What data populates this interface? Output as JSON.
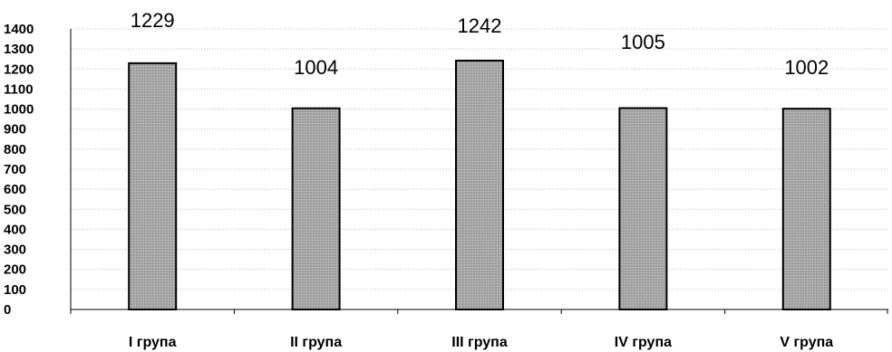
{
  "chart_data": {
    "type": "bar",
    "categories": [
      "I група",
      "II група",
      "III група",
      "IV група",
      "V група"
    ],
    "values": [
      1229,
      1004,
      1242,
      1005,
      1002
    ],
    "data_labels": [
      "1229",
      "1004",
      "1242",
      "1005",
      "1002"
    ],
    "title": "",
    "xlabel": "",
    "ylabel": "",
    "ylim": [
      0,
      1400
    ],
    "yticks": [
      0,
      100,
      200,
      300,
      400,
      500,
      600,
      700,
      800,
      900,
      1000,
      1100,
      1200,
      1300,
      1400
    ],
    "ytick_labels": [
      "0",
      "100",
      "200",
      "300",
      "400",
      "500",
      "600",
      "700",
      "800",
      "900",
      "1000",
      "1100",
      "1200",
      "1300",
      "1400"
    ],
    "grid": true,
    "legend": "none",
    "bar_color": "#a9a9a9",
    "bar_edge_color": "#000000"
  }
}
